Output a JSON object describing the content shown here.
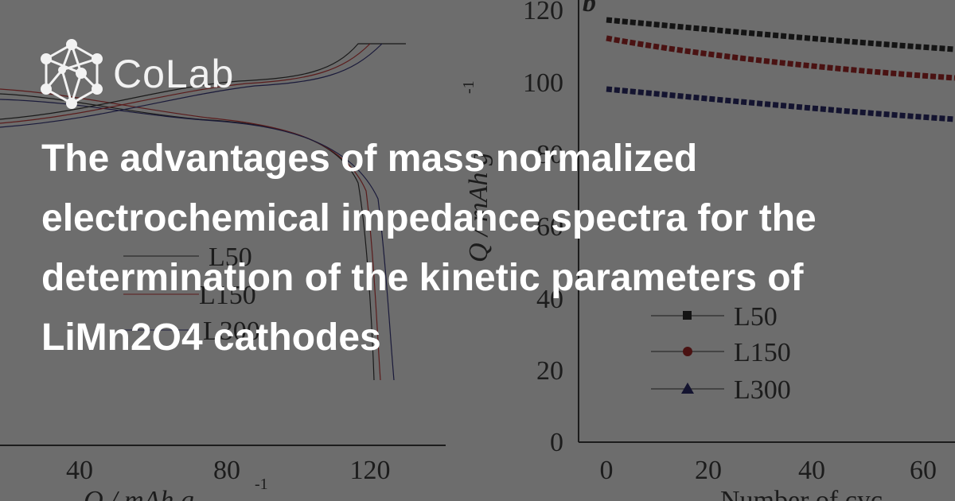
{
  "logo": {
    "text": "CoLab"
  },
  "title": "The advantages of mass normalized electrochemical impedance spectra for the determination of the kinetic parameters of LiMn2O4 cathodes",
  "background": {
    "left_chart": {
      "x_ticks": [
        "40",
        "80",
        "120"
      ],
      "x_label": "Q / mAh g",
      "x_label_sup": "-1",
      "legend": [
        "L50",
        "L150",
        "L300"
      ]
    },
    "right_chart": {
      "panel_label": "b",
      "y_ticks": [
        "120",
        "100",
        "80",
        "60",
        "40",
        "20",
        "0"
      ],
      "y_label": "Q / mAh g",
      "y_label_sup": "-1",
      "x_ticks": [
        "0",
        "20",
        "40",
        "60"
      ],
      "x_label": "Number of cyc",
      "legend": [
        "L50",
        "L150",
        "L300"
      ]
    }
  }
}
